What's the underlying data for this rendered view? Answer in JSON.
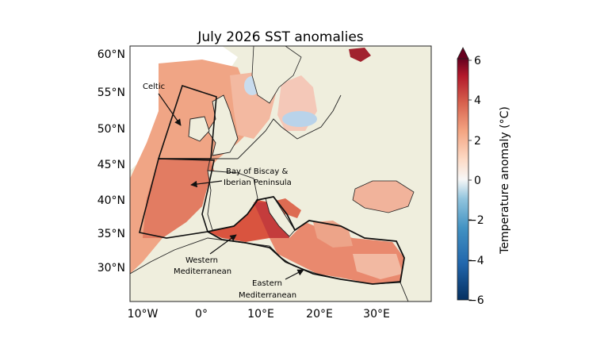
{
  "title": "July 2026 SST anomalies",
  "lat_labels": [
    "60°N",
    "55°N",
    "50°N",
    "45°N",
    "40°N",
    "35°N",
    "30°N"
  ],
  "lon_labels": [
    "10°W",
    "0°",
    "10°E",
    "20°E",
    "30°E"
  ],
  "colorbar": {
    "label": "Temperature anomaly (°C)",
    "ticks": [
      "6",
      "4",
      "2",
      "0",
      "−2",
      "−4",
      "−6"
    ],
    "range": [
      -6,
      6
    ],
    "colors": {
      "min": "#053061",
      "mid": "#f7f7f7",
      "max": "#67001f"
    }
  },
  "regions": {
    "celtic": "Celtic",
    "biscay_line1": "Bay of Biscay &",
    "biscay_line2": "Iberian Peninsula",
    "west_med_line1": "Western",
    "west_med_line2": "Mediterranean",
    "east_med_line1": "Eastern",
    "east_med_line2": "Mediterranean"
  },
  "colors": {
    "land": "#efeedd",
    "sea_warm": "#e8866a",
    "sea_hot": "#c43c3c",
    "sea_cool": "#b9d3ea"
  }
}
